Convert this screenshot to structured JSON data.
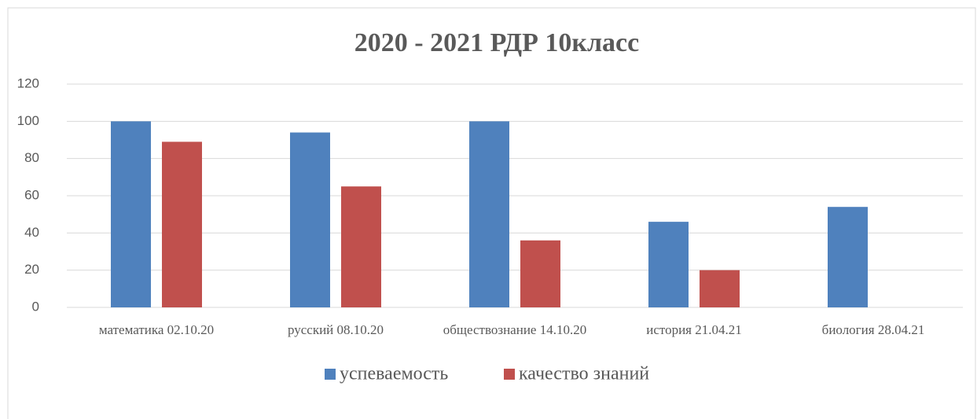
{
  "chart_data": {
    "type": "bar",
    "title": "2020 - 2021 РДР 10класс",
    "categories": [
      "математика 02.10.20",
      "русский 08.10.20",
      "обществознание 14.10.20",
      "история 21.04.21",
      "биология 28.04.21"
    ],
    "series": [
      {
        "name": "успеваемость",
        "color": "#4f81bd",
        "values": [
          100,
          94,
          100,
          46,
          54
        ]
      },
      {
        "name": "качество знаний",
        "color": "#c0504d",
        "values": [
          89,
          65,
          36,
          20,
          0
        ]
      }
    ],
    "ylim": [
      0,
      120
    ],
    "yticks": [
      0,
      20,
      40,
      60,
      80,
      100,
      120
    ],
    "grid": true,
    "legend": "bottom"
  }
}
